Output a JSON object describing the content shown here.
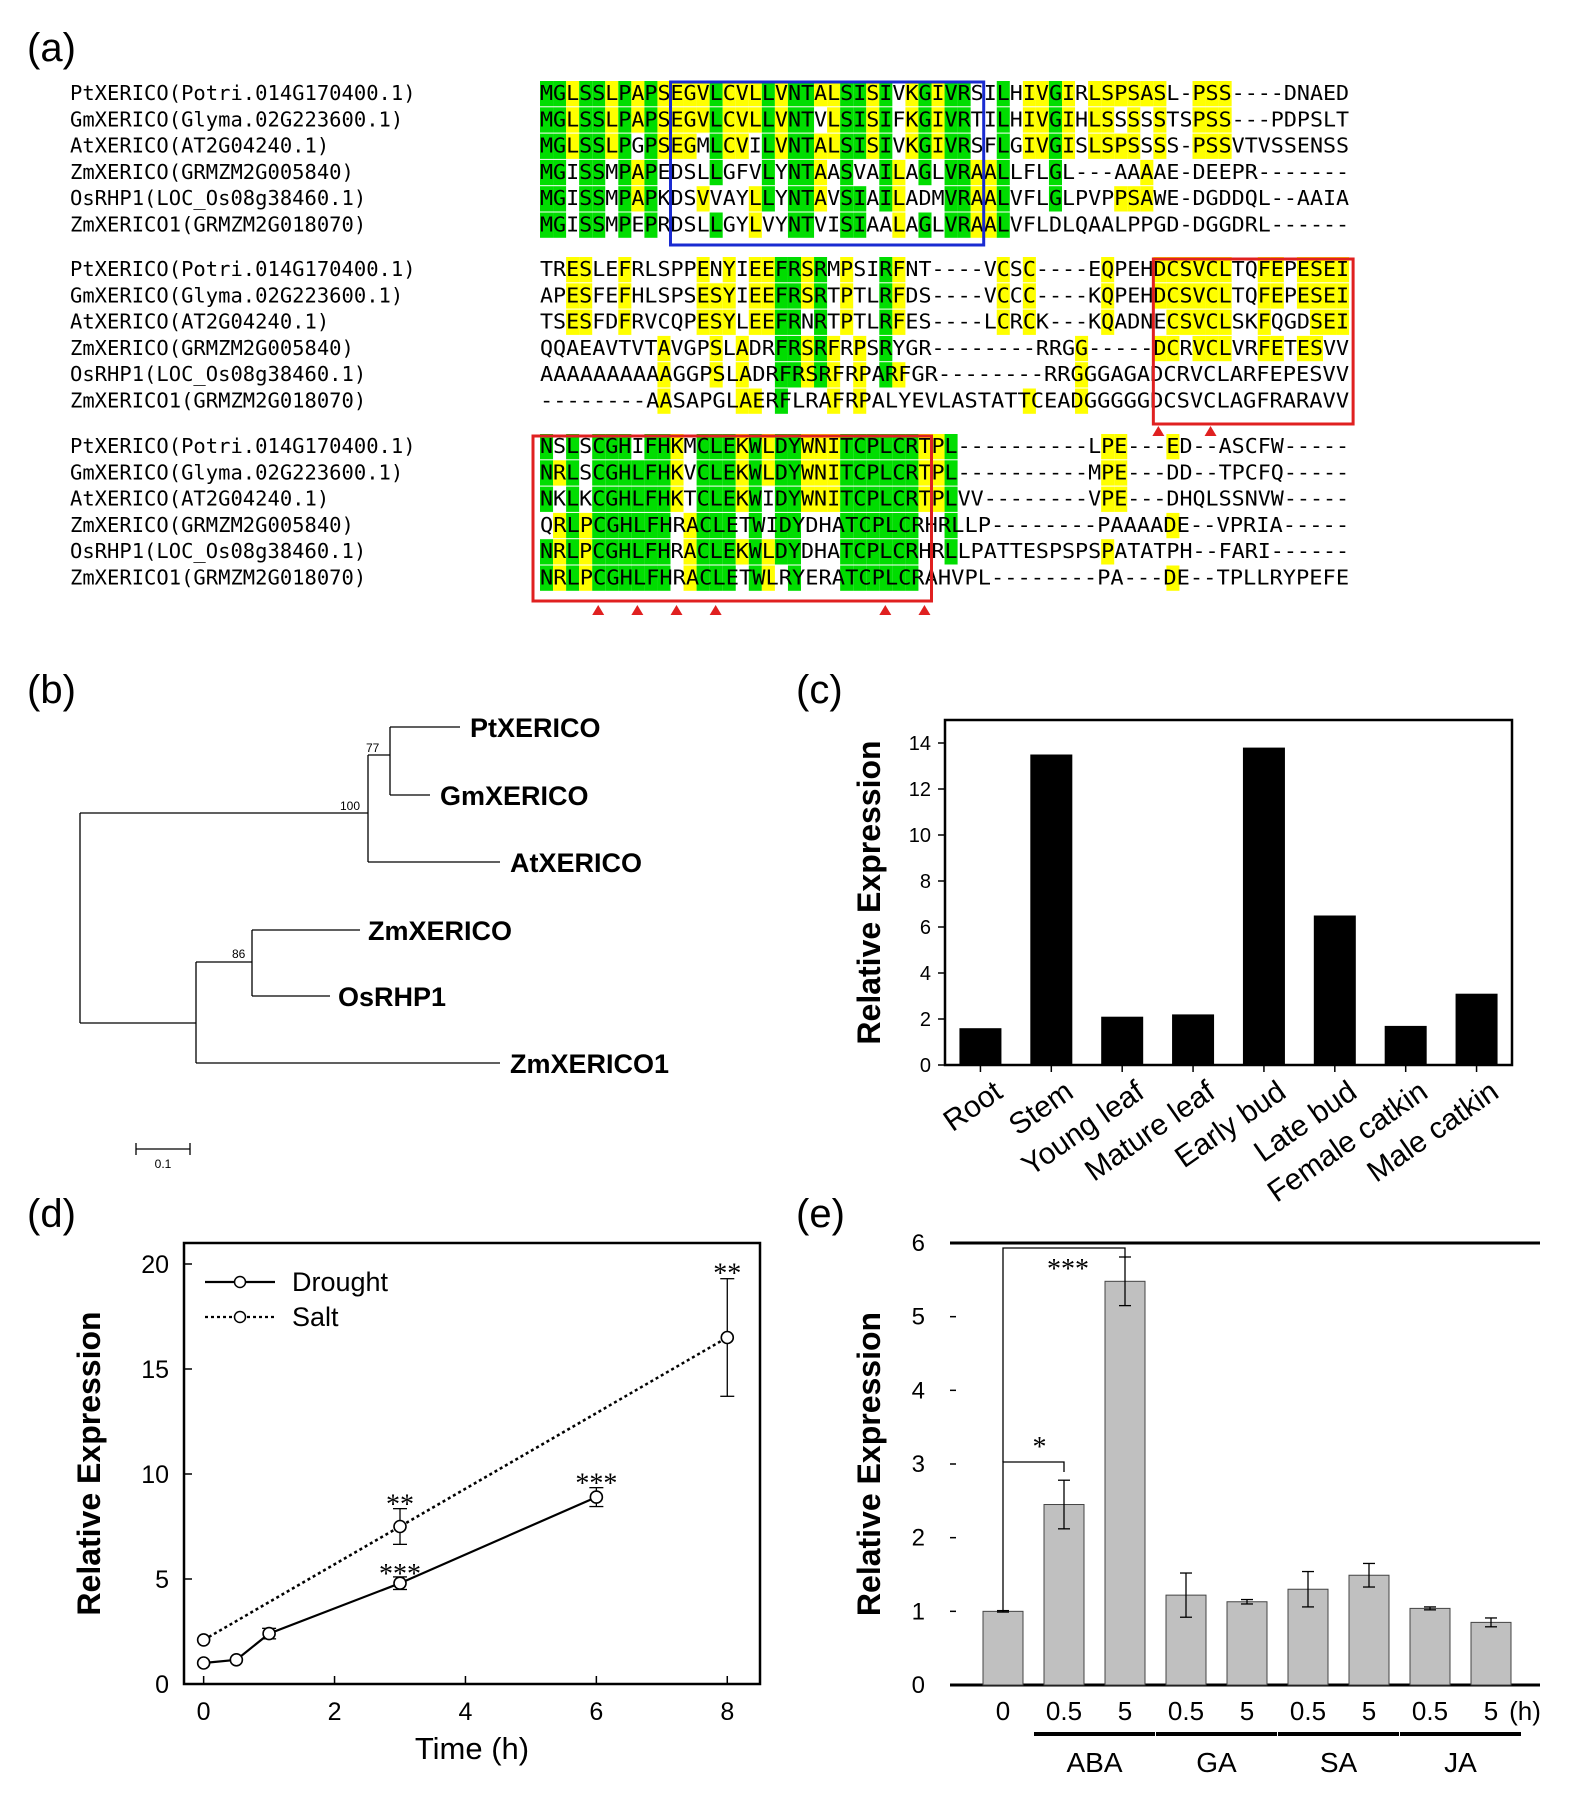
{
  "panel_labels": [
    "(a)",
    "(b)",
    "(c)",
    "(d)",
    "(e)"
  ],
  "alignment": {
    "names": [
      "PtXERICO(Potri.014G170400.1)",
      "GmXERICO(Glyma.02G223600.1)",
      "AtXERICO(AT2G04240.1)",
      "ZmXERICO(GRMZM2G005840)",
      "OsRHP1(LOC_Os08g38460.1)",
      "ZmXERICO1(GRMZM2G018070)"
    ],
    "blocks": [
      [
        "MGLSSLPAPSEGVLCVLLVNTALSISIVKGIVRSILHIVGIRLSPSASL-PSS----DNAED",
        "MGLSSLPAPSEGVLCVLLVNTVLSISIFKGIVRTILHIVGIHLSSSSSTSPSS---PDPSLT",
        "MGLSSLPGPSEGMLCVILVNTALSISIVKGIVRSFLGIVGISLSPSSSS-PSSVTVSSENSS",
        "MGISSMPAPEDSLLGFVLYNTAASVAILAGLVRAALLFLGL---AAAAE-DEEPR-------",
        "MGISSMPAPKDSVVAYLLYNTAVSIAILADMVRAALVFLGLPVPPSAWE-DGDDQL--AAIA",
        "MGISSMPEPRDSLLGYLVYNTVISIAALAGLVRAALVFLDLQAALPPGD-DGGDRL------"
      ],
      [
        "TRESLEFRLSPPENYIEEFRSRMPSIRFNT----VCSC----EQPEHDCSVCLTQFEPESEI",
        "APESFEFHLSPSESYIEEFRSRTPTLRFDS----VCCC----KQPEHDCSVCLTQFEPESEI",
        "TSESFDFRVCQPESYLEEFRNRTPTLRFES----LCRCK---KQADNECSVCLSKFQGDSEI",
        "QQAEAVTVTAVGPSLADRFRSRFRPSRYGR--------RRGG-----DCRVCLVRFETESVV",
        "AAAAAAAAAAGGPSLADRFRSRFRPARFGR--------RRGGGAGADCRVCLARFEPESVV",
        "--------AASAPGLAERFLRAFRPALYEVLASTATTCEADGGGGGDCSVCLAGFRARAVV"
      ],
      [
        "NSLSCGHIFHKMCLEKWLDYWNITCPLCRTPL----------LPE---ED--ASCFW-----",
        "NRLSCGHLFHKVCLEKWLDYWNITCPLCRTPL----------MPE---DD--TPCFQ-----",
        "NKLKCGHLFHKTCLEKWIDYWNITCPLCRTPLVV--------VPE---DHQLSSNVW-----",
        "QRLPCGHLFHRACLETWIDYDHATCPLCRHRLLP--------PAAAADE--VPRIA-----",
        "NRLPCGHLFHRACLEKWLDYDHATCPLCRHRLLPATTESPSPSPATATPH--FARI------",
        "NRLPCGHLFHRACLETWLRYERATCPLCRAHVPL--------PA---DE--TPLLRYPEFE"
      ]
    ]
  },
  "tree": {
    "taxa": [
      "PtXERICO",
      "GmXERICO",
      "AtXERICO",
      "ZmXERICO",
      "OsRHP1",
      "ZmXERICO1"
    ],
    "bootstrap": [
      "77",
      "100",
      "86"
    ],
    "scale_label": "0.1"
  },
  "chart_data": [
    {
      "type": "bar",
      "ylabel": "Relative Expression",
      "xlabel": "",
      "ylim": [
        0,
        15
      ],
      "yticks": [
        0,
        2,
        4,
        6,
        8,
        10,
        12,
        14
      ],
      "categories": [
        "Root",
        "Stem",
        "Young leaf",
        "Mature leaf",
        "Early bud",
        "Late bud",
        "Female catkin",
        "Male catkin"
      ],
      "values": [
        1.6,
        13.5,
        2.1,
        2.2,
        13.8,
        6.5,
        1.7,
        3.1
      ],
      "color": "#000000"
    },
    {
      "type": "line",
      "xlabel": "Time (h)",
      "ylabel": "Relative Expression",
      "xlim": [
        -0.3,
        8.5
      ],
      "ylim": [
        0,
        21
      ],
      "xticks": [
        0,
        2,
        4,
        6,
        8
      ],
      "yticks": [
        0,
        5,
        10,
        15,
        20
      ],
      "legend": [
        "Drought",
        "Salt"
      ],
      "series": [
        {
          "name": "Drought",
          "x": [
            0,
            0.5,
            1,
            3,
            6
          ],
          "y": [
            1.0,
            1.15,
            2.4,
            4.8,
            8.9
          ],
          "err": [
            0.05,
            0.1,
            0.25,
            0.3,
            0.45
          ],
          "style": "solid"
        },
        {
          "name": "Salt",
          "x": [
            0,
            3,
            8
          ],
          "y": [
            2.1,
            7.5,
            16.5
          ],
          "err": [
            0.1,
            0.85,
            2.8
          ],
          "style": "dotted"
        }
      ],
      "annotations": [
        {
          "text": "**",
          "x": 8,
          "y": 19.4
        },
        {
          "text": "**",
          "x": 3,
          "y": 8.4
        },
        {
          "text": "***",
          "x": 3,
          "y": 5.1
        },
        {
          "text": "***",
          "x": 6,
          "y": 9.4
        }
      ]
    },
    {
      "type": "bar",
      "ylabel": "Relative Expression",
      "xlabel": "",
      "ylim": [
        0,
        6
      ],
      "yticks": [
        0,
        1,
        2,
        3,
        4,
        5,
        6
      ],
      "categories": [
        "0",
        "0.5",
        "5",
        "0.5",
        "5",
        "0.5",
        "5",
        "0.5",
        "5"
      ],
      "unit_label": "(h)",
      "groups": [
        {
          "name": "ABA",
          "from": 1,
          "to": 2
        },
        {
          "name": "GA",
          "from": 3,
          "to": 4
        },
        {
          "name": "SA",
          "from": 5,
          "to": 6
        },
        {
          "name": "JA",
          "from": 7,
          "to": 8
        }
      ],
      "values": [
        1.0,
        2.45,
        5.48,
        1.22,
        1.13,
        1.3,
        1.49,
        1.04,
        0.85
      ],
      "errors": [
        0.01,
        0.33,
        0.33,
        0.3,
        0.03,
        0.24,
        0.16,
        0.02,
        0.06
      ],
      "color": "#c0c0c0",
      "significance": [
        {
          "text": "*",
          "from": 0,
          "to": 1
        },
        {
          "text": "***",
          "from": 0,
          "to": 2
        }
      ]
    }
  ]
}
